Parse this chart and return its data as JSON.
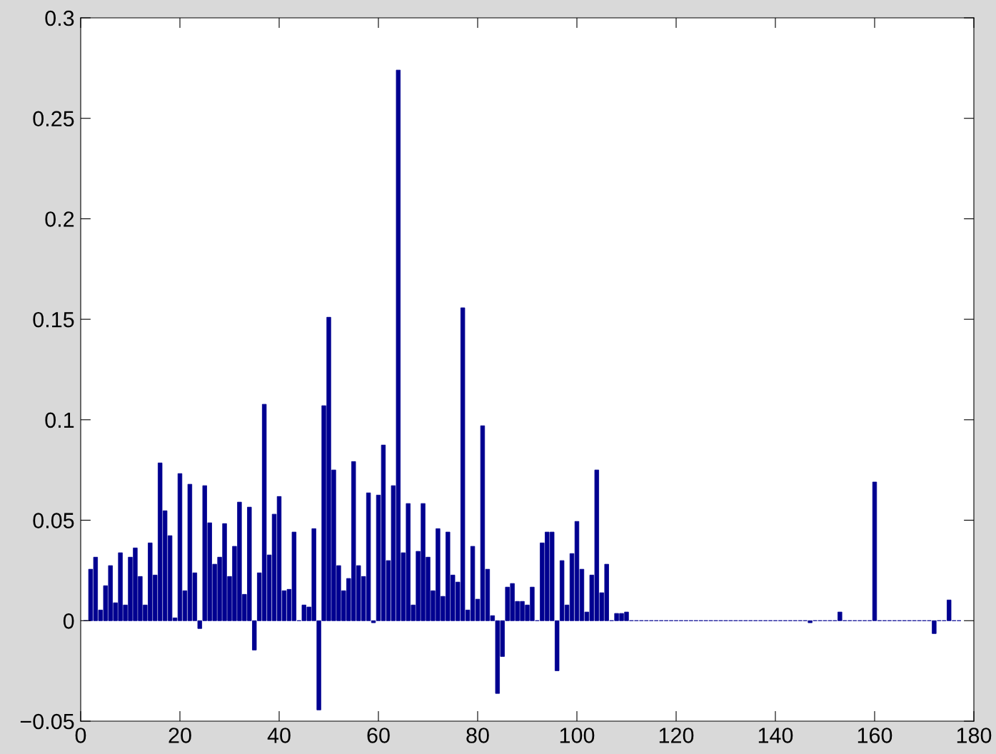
{
  "chart_data": {
    "type": "bar",
    "color": "#000090",
    "grid": false,
    "x": [
      1,
      2,
      3,
      4,
      5,
      6,
      7,
      8,
      9,
      10,
      11,
      12,
      13,
      14,
      15,
      16,
      17,
      18,
      19,
      20,
      21,
      22,
      23,
      24,
      25,
      26,
      27,
      28,
      29,
      30,
      31,
      32,
      33,
      34,
      35,
      36,
      37,
      38,
      39,
      40,
      41,
      42,
      43,
      44,
      45,
      46,
      47,
      48,
      49,
      50,
      51,
      52,
      53,
      54,
      55,
      56,
      57,
      58,
      59,
      60,
      61,
      62,
      63,
      64,
      65,
      66,
      67,
      68,
      69,
      70,
      71,
      72,
      73,
      74,
      75,
      76,
      77,
      78,
      79,
      80,
      81,
      82,
      83,
      84,
      85,
      86,
      87,
      88,
      89,
      90,
      91,
      92,
      93,
      94,
      95,
      96,
      97,
      98,
      99,
      100,
      101,
      102,
      103,
      104,
      105,
      106,
      107,
      108,
      109,
      110,
      111,
      112,
      113,
      114,
      115,
      116,
      117,
      118,
      119,
      120,
      121,
      122,
      123,
      124,
      125,
      126,
      127,
      128,
      129,
      130,
      131,
      132,
      133,
      134,
      135,
      136,
      137,
      138,
      139,
      140,
      141,
      142,
      143,
      144,
      145,
      146,
      147,
      148,
      149,
      150,
      151,
      152,
      153,
      154,
      155,
      156,
      157,
      158,
      159,
      160,
      161,
      162,
      163,
      164,
      165,
      166,
      167,
      168,
      169,
      170,
      171,
      172,
      173,
      174,
      175,
      176,
      177
    ],
    "values": [
      0,
      0.0256,
      0.0316,
      0.0053,
      0.0174,
      0.0274,
      0.0089,
      0.0338,
      0.0078,
      0.0316,
      0.0362,
      0.022,
      0.0078,
      0.0387,
      0.0227,
      0.0785,
      0.0547,
      0.0423,
      0.0014,
      0.0732,
      0.0149,
      0.0679,
      0.0238,
      -0.0039,
      0.0672,
      0.0487,
      0.0281,
      0.0316,
      0.0483,
      0.022,
      0.037,
      0.059,
      0.0131,
      0.0565,
      -0.0146,
      0.0238,
      0.1077,
      0.0327,
      0.053,
      0.0618,
      0.0149,
      0.0156,
      0.0441,
      0,
      0.0078,
      0.0068,
      0.0458,
      -0.0444,
      0.107,
      0.151,
      0.075,
      0.0274,
      0.0149,
      0.021,
      0.0792,
      0.0274,
      0.022,
      0.0636,
      -0.001,
      0.0625,
      0.0874,
      0.0299,
      0.0672,
      0.274,
      0.0338,
      0.0583,
      0.0078,
      0.0345,
      0.0583,
      0.0316,
      0.0149,
      0.0458,
      0.0121,
      0.0441,
      0.0227,
      0.0192,
      0.1557,
      0.0053,
      0.037,
      0.0107,
      0.097,
      0.0256,
      0.0025,
      -0.0362,
      -0.0178,
      0.0167,
      0.0185,
      0.0096,
      0.0096,
      0.0078,
      0.0167,
      0,
      0.0387,
      0.0441,
      0.0441,
      -0.0249,
      0.0299,
      0.0078,
      0.0334,
      0.0494,
      0.0256,
      0.0043,
      0.0227,
      0.075,
      0.0139,
      0.0281,
      0,
      0.0036,
      0.0036,
      0.0043,
      0,
      0,
      0,
      0,
      0,
      0,
      0,
      0,
      0,
      0,
      0,
      0,
      0,
      0,
      0,
      0,
      0,
      0,
      0,
      0,
      0,
      0,
      0,
      0,
      0,
      0,
      0,
      0,
      0,
      0,
      0,
      0,
      0,
      0,
      0,
      0,
      -0.001,
      0,
      0,
      0,
      0,
      0,
      0.0043,
      0,
      0,
      0,
      0,
      0,
      0,
      0.069,
      0,
      0,
      0,
      0,
      0,
      0,
      0,
      0,
      0,
      0,
      0,
      -0.0064,
      0,
      0,
      0.0103,
      0,
      0
    ],
    "xlim": [
      0,
      180
    ],
    "xticks": [
      0,
      20,
      40,
      60,
      80,
      100,
      120,
      140,
      160,
      180
    ],
    "ylim": [
      -0.05,
      0.3
    ],
    "yticks": [
      -0.05,
      0,
      0.05,
      0.1,
      0.15,
      0.2,
      0.25,
      0.3
    ]
  }
}
